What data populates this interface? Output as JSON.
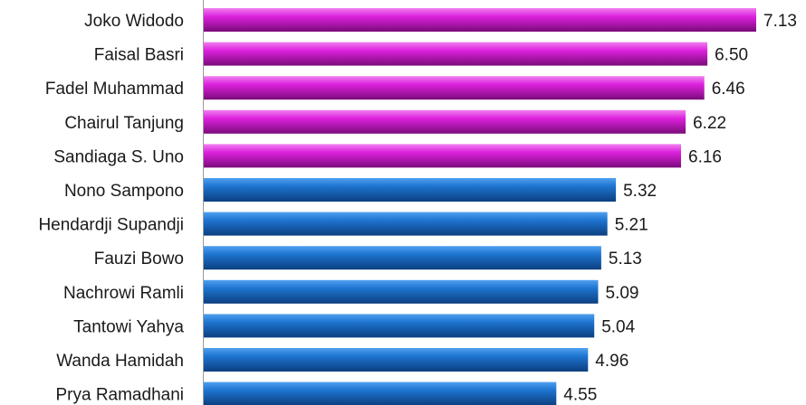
{
  "chart_data": {
    "type": "bar",
    "orientation": "horizontal",
    "categories": [
      "Joko Widodo",
      "Faisal Basri",
      "Fadel Muhammad",
      "Chairul Tanjung",
      "Sandiaga S. Uno",
      "Nono Sampono",
      "Hendardji Supandji",
      "Fauzi Bowo",
      "Nachrowi Ramli",
      "Tantowi Yahya",
      "Wanda Hamidah",
      "Prya Ramadhani"
    ],
    "values": [
      7.13,
      6.5,
      6.46,
      6.22,
      6.16,
      5.32,
      5.21,
      5.13,
      5.09,
      5.04,
      4.96,
      4.55
    ],
    "value_labels": [
      "7.13",
      "6.50",
      "6.46",
      "6.22",
      "6.16",
      "5.32",
      "5.21",
      "5.13",
      "5.09",
      "5.04",
      "4.96",
      "4.55"
    ],
    "bar_colors": [
      "#cc00cc",
      "#cc00cc",
      "#cc00cc",
      "#cc00cc",
      "#cc00cc",
      "#1565c0",
      "#1565c0",
      "#1565c0",
      "#1565c0",
      "#1565c0",
      "#1565c0",
      "#1565c0"
    ],
    "title": "",
    "xlabel": "",
    "ylabel": "",
    "xlim": [
      0,
      7.35
    ],
    "grid": false,
    "legend": "none"
  }
}
